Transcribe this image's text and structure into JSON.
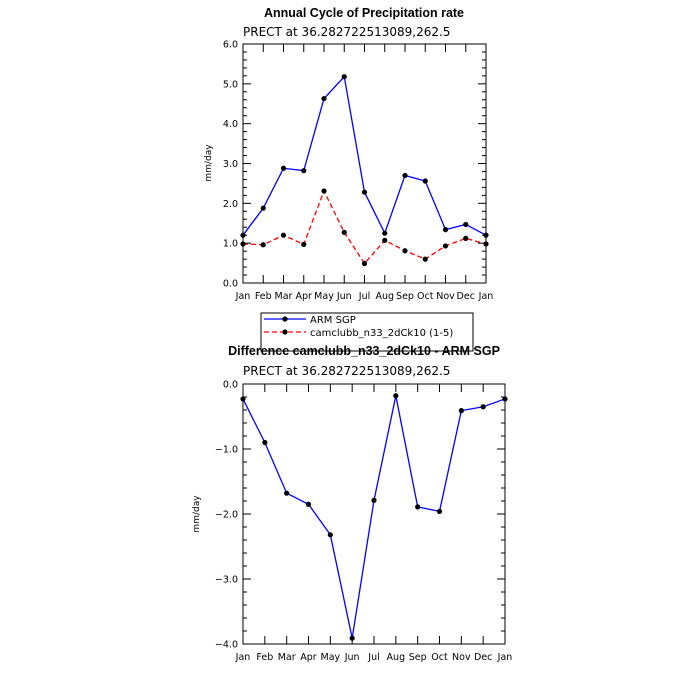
{
  "chart_data": [
    {
      "type": "line",
      "title": "Annual Cycle of Precipitation rate",
      "subtitle": "PRECT at 36.282722513089,262.5",
      "ylabel": "mm/day",
      "ylim": [
        0,
        6
      ],
      "yticks": [
        "0.0",
        "1.0",
        "2.0",
        "3.0",
        "4.0",
        "5.0",
        "6.0"
      ],
      "categories": [
        "Jan",
        "Feb",
        "Mar",
        "Apr",
        "May",
        "Jun",
        "Jul",
        "Aug",
        "Sep",
        "Oct",
        "Nov",
        "Dec",
        "Jan"
      ],
      "series": [
        {
          "name": "ARM SGP",
          "color": "#0000ff",
          "dash": false,
          "values": [
            1.2,
            1.88,
            2.88,
            2.82,
            4.63,
            5.18,
            2.28,
            1.25,
            2.7,
            2.56,
            1.34,
            1.47,
            1.2
          ]
        },
        {
          "name": "camclubb_n33_2dCk10 (1-5)",
          "color": "#ff0000",
          "dash": true,
          "values": [
            0.98,
            0.96,
            1.2,
            0.97,
            2.31,
            1.27,
            0.49,
            1.07,
            0.81,
            0.6,
            0.93,
            1.12,
            0.98
          ]
        }
      ],
      "legend": "bottom"
    },
    {
      "type": "line",
      "title": "Difference camclubb_n33_2dCk10 - ARM SGP",
      "subtitle": "PRECT at 36.282722513089,262.5",
      "ylabel": "mm/day",
      "ylim": [
        -4,
        0
      ],
      "yticks": [
        "0.0",
        "−1.0",
        "−2.0",
        "−3.0",
        "−4.0"
      ],
      "categories": [
        "Jan",
        "Feb",
        "Mar",
        "Apr",
        "May",
        "Jun",
        "Jul",
        "Aug",
        "Sep",
        "Oct",
        "Nov",
        "Dec",
        "Jan"
      ],
      "series": [
        {
          "color": "#0000ff",
          "dash": false,
          "values": [
            -0.23,
            -0.9,
            -1.68,
            -1.85,
            -2.32,
            -3.91,
            -1.79,
            -0.18,
            -1.89,
            -1.96,
            -0.41,
            -0.35,
            -0.23
          ]
        }
      ]
    }
  ]
}
